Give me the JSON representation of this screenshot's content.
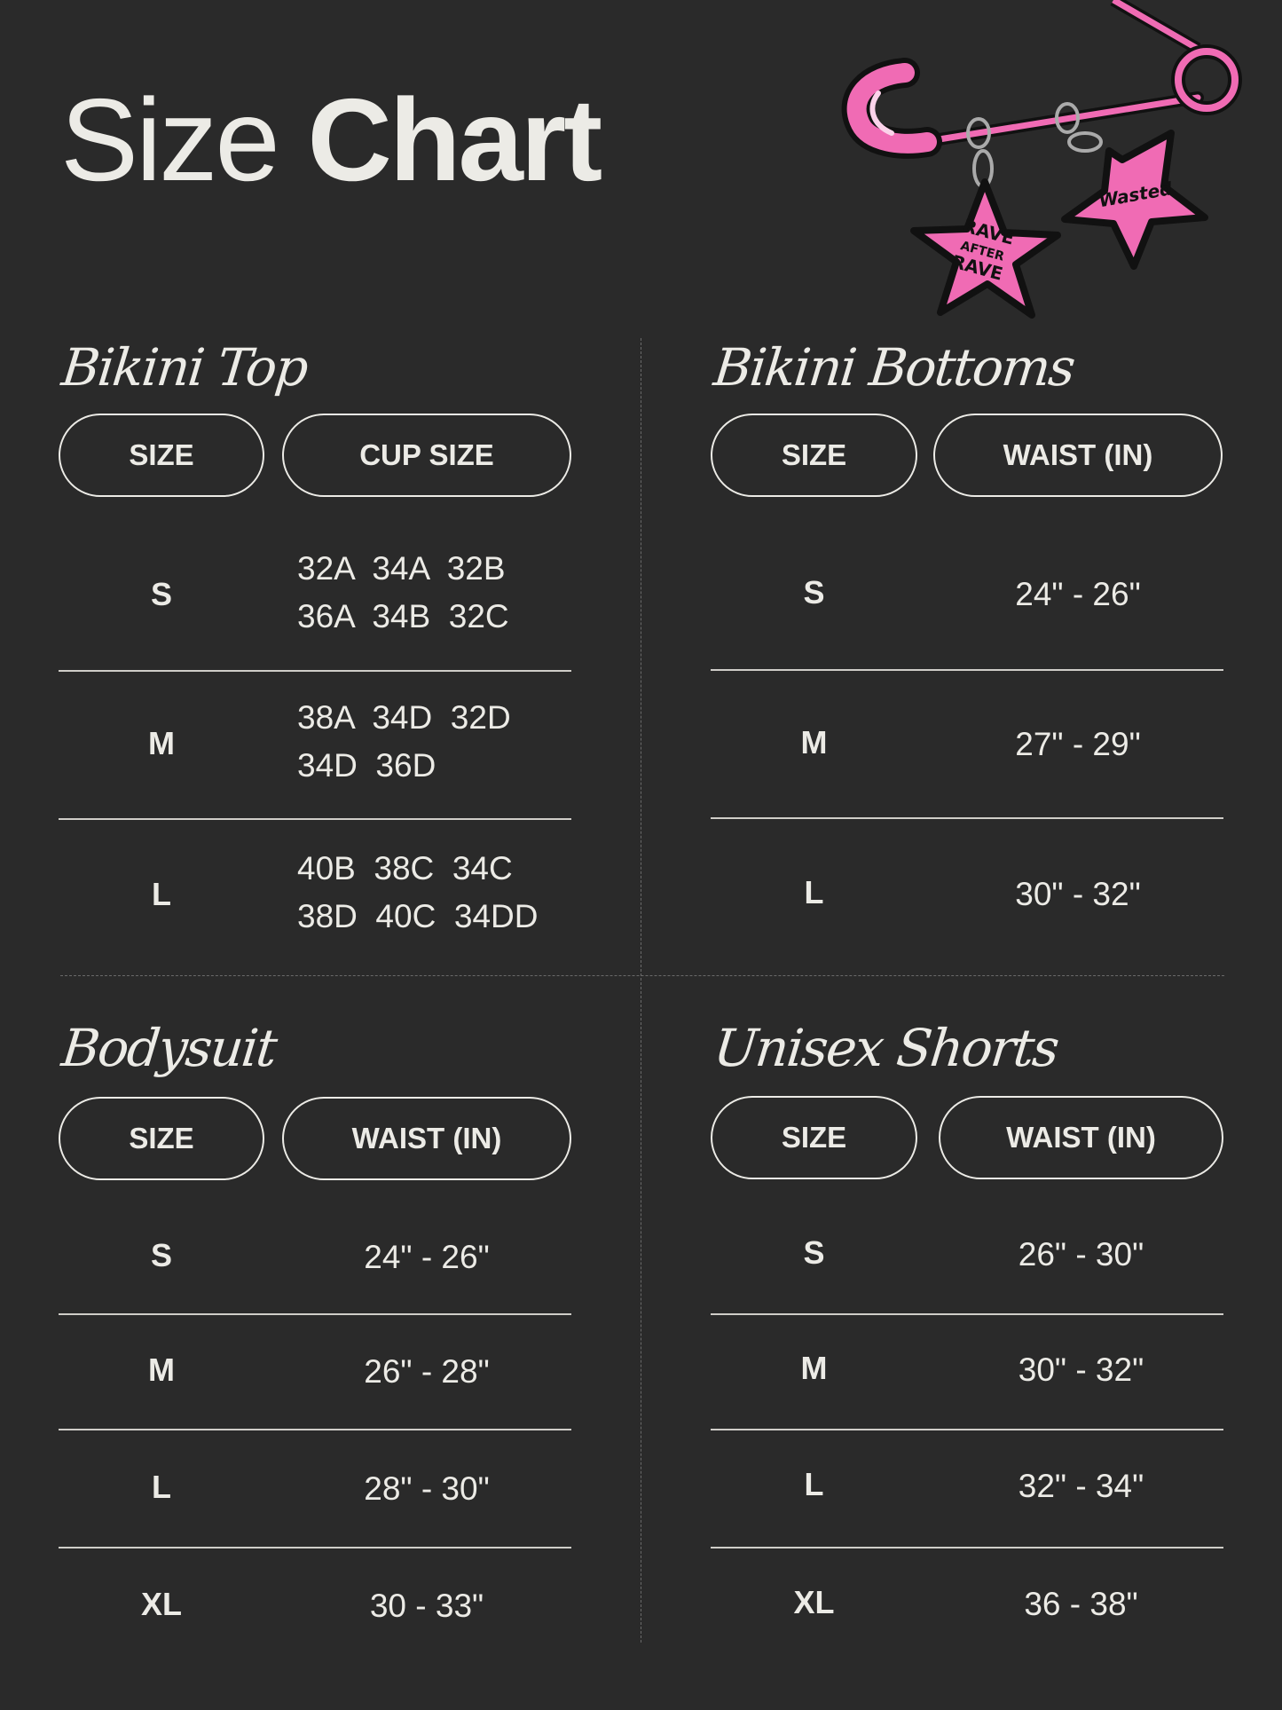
{
  "title": {
    "light": "Size",
    "bold": "Chart"
  },
  "logo_text": [
    "RAVE AFTER RAVE",
    "Wasted"
  ],
  "colors": {
    "background": "#2a2a2a",
    "text": "#ecebe6",
    "accent_pink": "#f06bb4"
  },
  "sections": {
    "bikini_top": {
      "heading": "Bikini Top",
      "headers": [
        "SIZE",
        "CUP SIZE"
      ],
      "rows": [
        {
          "size": "S",
          "value": "32A  34A  32B\n36A  34B  32C"
        },
        {
          "size": "M",
          "value": "38A  34D  32D\n34D  36D"
        },
        {
          "size": "L",
          "value": "40B  38C  34C\n38D  40C  34DD"
        }
      ]
    },
    "bikini_bottoms": {
      "heading": "Bikini Bottoms",
      "headers": [
        "SIZE",
        "WAIST (IN)"
      ],
      "rows": [
        {
          "size": "S",
          "value": "24\" - 26\""
        },
        {
          "size": "M",
          "value": "27\" - 29\""
        },
        {
          "size": "L",
          "value": "30\" - 32\""
        }
      ]
    },
    "bodysuit": {
      "heading": "Bodysuit",
      "headers": [
        "SIZE",
        "WAIST (IN)"
      ],
      "rows": [
        {
          "size": "S",
          "value": "24\" - 26\""
        },
        {
          "size": "M",
          "value": "26\" - 28\""
        },
        {
          "size": "L",
          "value": "28\" - 30\""
        },
        {
          "size": "XL",
          "value": "30 - 33\""
        }
      ]
    },
    "unisex_shorts": {
      "heading": "Unisex Shorts",
      "headers": [
        "SIZE",
        "WAIST (IN)"
      ],
      "rows": [
        {
          "size": "S",
          "value": "26\" - 30\""
        },
        {
          "size": "M",
          "value": "30\" - 32\""
        },
        {
          "size": "L",
          "value": "32\" - 34\""
        },
        {
          "size": "XL",
          "value": "36 - 38\""
        }
      ]
    }
  }
}
